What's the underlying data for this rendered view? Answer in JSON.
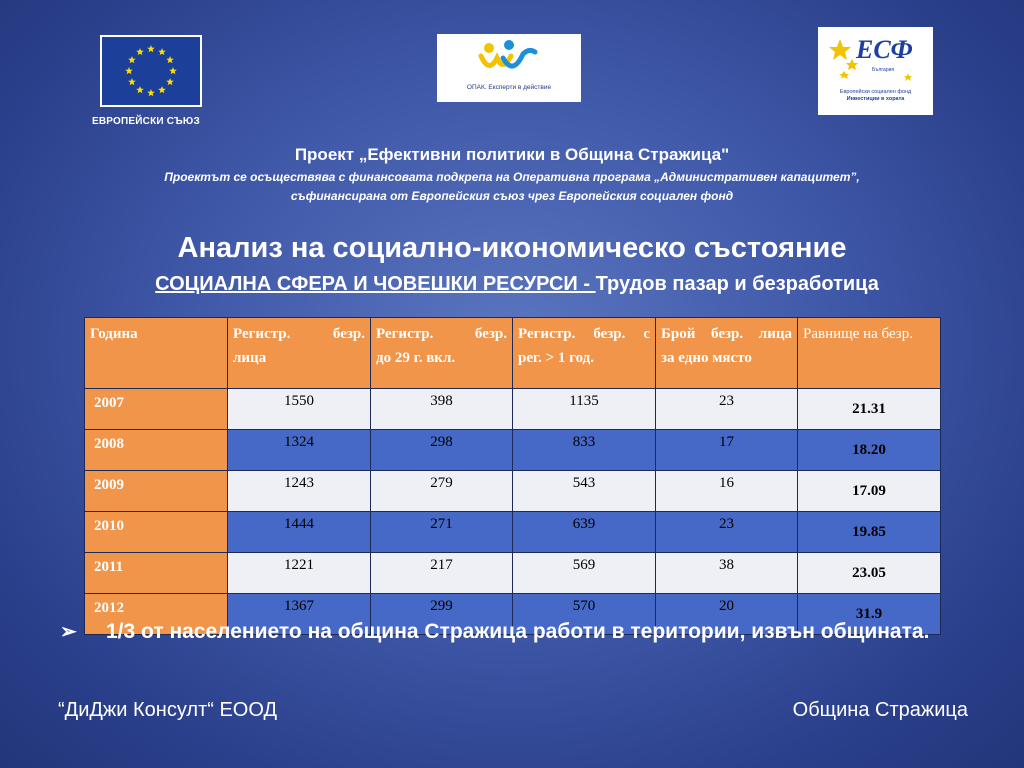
{
  "logos": {
    "eu_caption": "ЕВРОПЕЙСКИ СЪЮЗ",
    "opak_text": "ОПАК. Експерти в действие",
    "esf_mark": "ЕСФ",
    "esf_country": "България",
    "esf_line1": "Европейски социален фонд",
    "esf_line2": "Инвестиции в хората"
  },
  "header": {
    "project_title": "Проект „Ефективни политики в Община Стражица\"",
    "project_sub1": "Проектът се осъществява с финансовата подкрепа на Оперативна програма „Административен капацитет”,",
    "project_sub2": "съфинансирана от Европейския съюз чрез Европейския социален фонд",
    "main_title": "Анализ на социално-икономическо състояние",
    "subtitle_underlined": "СОЦИАЛНА СФЕРА И ЧОВЕШКИ РЕСУРСИ - ",
    "subtitle_rest": "Трудов пазар и безработица"
  },
  "table": {
    "headers": [
      [
        "Година",
        ""
      ],
      [
        "Регистр. безр.",
        "лица"
      ],
      [
        "Регистр. безр.",
        "до 29 г. вкл."
      ],
      [
        "Регистр. безр. с",
        "рег. > 1 год."
      ],
      [
        "Брой безр. лица",
        "за едно място"
      ],
      [
        "Равнище на безр.",
        ""
      ]
    ],
    "rows": [
      [
        "2007",
        "1550",
        "398",
        "1135",
        "23",
        "21.31"
      ],
      [
        "2008",
        "1324",
        "298",
        "833",
        "17",
        "18.20"
      ],
      [
        "2009",
        "1243",
        "279",
        "543",
        "16",
        "17.09"
      ],
      [
        "2010",
        "1444",
        "271",
        "639",
        "23",
        "19.85"
      ],
      [
        "2011",
        "1221",
        "217",
        "569",
        "38",
        "23.05"
      ],
      [
        "2012",
        "1367",
        "299",
        "570",
        "20",
        "31.9"
      ]
    ]
  },
  "bullet": {
    "icon": "arrow-bullet-icon",
    "text": "1/3 от населението на община Стражица работи в територии, извън общината."
  },
  "footer": {
    "left": "“ДиДжи Консулт“ ЕООД",
    "right": "Община Стражица"
  },
  "colors": {
    "orange": "#f0954a",
    "blue_row": "#4668c6",
    "light_row": "#eef0f5"
  }
}
